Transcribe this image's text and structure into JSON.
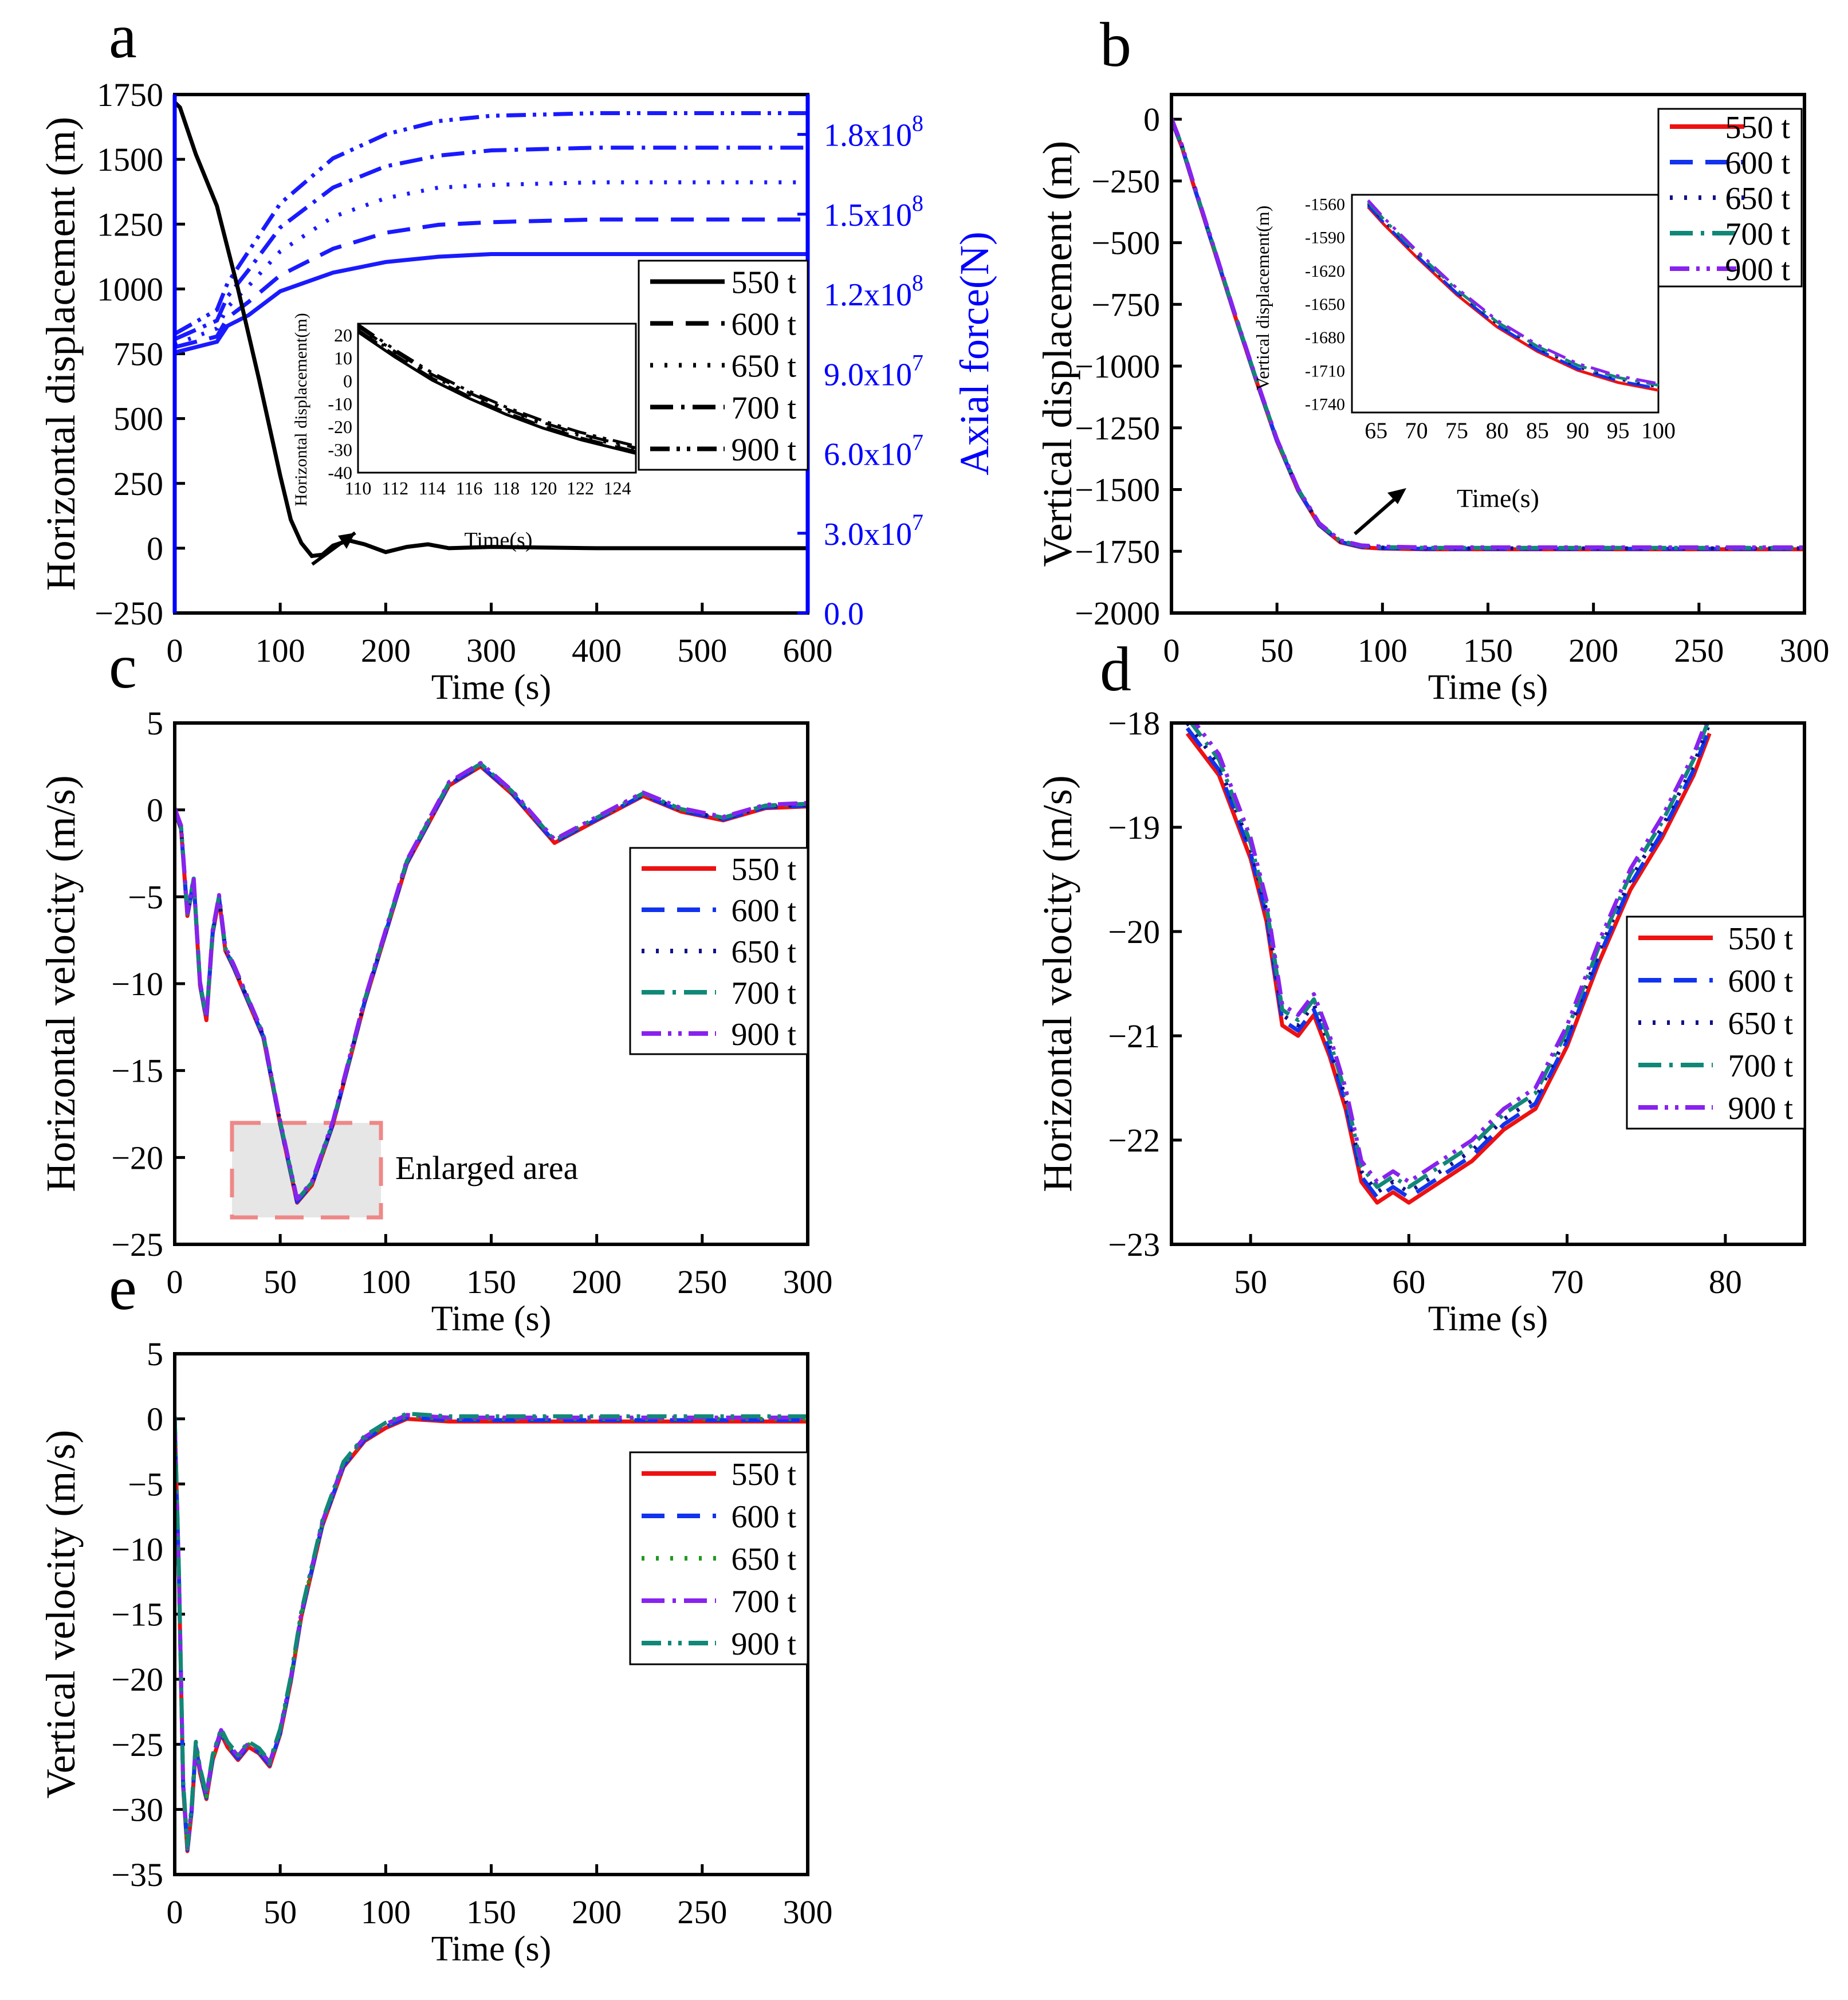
{
  "figure": {
    "panel_labels": [
      "a",
      "b",
      "c",
      "d",
      "e"
    ]
  },
  "colors": {
    "black": "#000000",
    "blue_axis": "#0000ff",
    "force": "#1a1aff",
    "red": "#ee1111",
    "blue": "#1133ee",
    "navy": "#111188",
    "teal": "#118877",
    "purple": "#8822ee",
    "green": "#229922"
  },
  "chart_data": [
    {
      "id": "a",
      "label": "a",
      "type": "line",
      "xlabel": "Time (s)",
      "ylabel": "Horizontal displacement (m)",
      "y2label": "Axial force(N)",
      "xlim": [
        0,
        600
      ],
      "ylim": [
        -250,
        1750
      ],
      "y2lim": [
        0,
        195000000
      ],
      "xticks": [
        "0",
        "100",
        "200",
        "300",
        "400",
        "500",
        "600"
      ],
      "yticks": [
        "−250",
        "0",
        "250",
        "500",
        "750",
        "1000",
        "1250",
        "1500",
        "1750"
      ],
      "y2ticks": [
        "0.0",
        "3.0x10",
        "6.0x10",
        "9.0x10",
        "1.2x10",
        "1.5x10",
        "1.8x10"
      ],
      "y2tick_exponents": [
        "",
        "7",
        "7",
        "7",
        "8",
        "8",
        "8"
      ],
      "legend": [
        "550 t",
        "600 t",
        "650 t",
        "700 t",
        "900 t"
      ],
      "displacement_series": {
        "name": "550 t",
        "x": [
          0,
          5,
          20,
          40,
          60,
          80,
          100,
          110,
          120,
          130,
          140,
          150,
          165,
          180,
          200,
          220,
          240,
          260,
          300,
          400,
          600
        ],
        "y": [
          1720,
          1700,
          1520,
          1320,
          1000,
          650,
          280,
          110,
          20,
          -30,
          -25,
          10,
          30,
          15,
          -15,
          5,
          15,
          0,
          5,
          0,
          0
        ]
      },
      "force_series": [
        {
          "name": "550 t",
          "x": [
            0,
            40,
            50,
            70,
            100,
            150,
            200,
            250,
            300,
            400,
            600
          ],
          "y": [
            98000000,
            102000000,
            108000000,
            112000000,
            121000000,
            128000000,
            132000000,
            134000000,
            135000000,
            135000000,
            135000000
          ]
        },
        {
          "name": "600 t",
          "x": [
            0,
            40,
            50,
            70,
            100,
            150,
            200,
            250,
            300,
            400,
            600
          ],
          "y": [
            100000000,
            104000000,
            111000000,
            117000000,
            127000000,
            137000000,
            143000000,
            146000000,
            147000000,
            148000000,
            148000000
          ]
        },
        {
          "name": "650 t",
          "x": [
            0,
            40,
            50,
            70,
            100,
            150,
            200,
            250,
            300,
            400,
            600
          ],
          "y": [
            101000000,
            107000000,
            115000000,
            123000000,
            136000000,
            149000000,
            156000000,
            160000000,
            161000000,
            162000000,
            162000000
          ]
        },
        {
          "name": "700 t",
          "x": [
            0,
            40,
            50,
            70,
            100,
            150,
            200,
            250,
            300,
            400,
            600
          ],
          "y": [
            103000000,
            110000000,
            119000000,
            129000000,
            145000000,
            160000000,
            168000000,
            172000000,
            174000000,
            175000000,
            175000000
          ]
        },
        {
          "name": "900 t",
          "x": [
            0,
            40,
            50,
            70,
            100,
            150,
            200,
            250,
            300,
            400,
            600
          ],
          "y": [
            105000000,
            114000000,
            124000000,
            136000000,
            154000000,
            171000000,
            180000000,
            185000000,
            187000000,
            188000000,
            188000000
          ]
        }
      ],
      "inset": {
        "xlabel": "Time(s)",
        "ylabel": "Horizontal displacement(m)",
        "xlim": [
          110,
          125
        ],
        "ylim": [
          -40,
          25
        ],
        "xticks": [
          "110",
          "112",
          "114",
          "116",
          "118",
          "120",
          "122",
          "124"
        ],
        "yticks": [
          "-40",
          "-30",
          "-20",
          "-10",
          "0",
          "10",
          "20"
        ],
        "x": [
          110,
          112,
          114,
          116,
          118,
          120,
          122,
          124,
          125
        ],
        "y": [
          23,
          12,
          2,
          -6,
          -13,
          -19,
          -24,
          -28,
          -30
        ]
      }
    },
    {
      "id": "b",
      "label": "b",
      "type": "line",
      "xlabel": "Time (s)",
      "ylabel": "Vertical displacement (m)",
      "xlim": [
        0,
        300
      ],
      "ylim": [
        -2000,
        100
      ],
      "xticks": [
        "0",
        "50",
        "100",
        "150",
        "200",
        "250",
        "300"
      ],
      "yticks": [
        "0",
        "−250",
        "−500",
        "−750",
        "−1000",
        "−1250",
        "−1500",
        "−1750",
        "−2000"
      ],
      "legend": [
        "550 t",
        "600 t",
        "650 t",
        "700 t",
        "900 t"
      ],
      "x": [
        0,
        5,
        10,
        20,
        30,
        40,
        50,
        60,
        70,
        80,
        90,
        100,
        120,
        150,
        200,
        300
      ],
      "y": [
        0,
        -110,
        -250,
        -520,
        -790,
        -1050,
        -1300,
        -1500,
        -1640,
        -1710,
        -1730,
        -1735,
        -1738,
        -1738,
        -1738,
        -1738
      ],
      "inset": {
        "xlabel": "Time(s)",
        "ylabel": "Vertical displacement(m)",
        "xlim": [
          62,
          100
        ],
        "ylim": [
          -1748,
          -1552
        ],
        "xticks": [
          "65",
          "70",
          "75",
          "80",
          "85",
          "90",
          "95",
          "100"
        ],
        "yticks": [
          "-1560",
          "-1590",
          "-1620",
          "-1650",
          "-1680",
          "-1710",
          "-1740"
        ],
        "x": [
          64,
          66,
          70,
          75,
          80,
          85,
          90,
          95,
          100
        ],
        "y": [
          -1560,
          -1576,
          -1605,
          -1639,
          -1668,
          -1690,
          -1707,
          -1718,
          -1725
        ]
      }
    },
    {
      "id": "c",
      "label": "c",
      "type": "line",
      "xlabel": "Time (s)",
      "ylabel": "Horizontal velocity (m/s)",
      "xlim": [
        0,
        300
      ],
      "ylim": [
        -25,
        5
      ],
      "xticks": [
        "0",
        "50",
        "100",
        "150",
        "200",
        "250",
        "300"
      ],
      "yticks": [
        "5",
        "0",
        "−5",
        "−10",
        "−15",
        "−20",
        "−25"
      ],
      "legend": [
        "550 t",
        "600 t",
        "650 t",
        "700 t",
        "900 t"
      ],
      "annotation": "Enlarged area",
      "x": [
        0,
        3,
        6,
        9,
        12,
        15,
        18,
        21,
        24,
        28,
        35,
        42,
        50,
        58,
        65,
        75,
        90,
        110,
        130,
        145,
        160,
        180,
        200,
        222,
        240,
        260,
        280,
        300
      ],
      "y": [
        0,
        -1,
        -6,
        -4,
        -10,
        -12,
        -7,
        -5,
        -8,
        -9,
        -11,
        -13,
        -18,
        -22.5,
        -21.5,
        -18,
        -11,
        -3,
        1.5,
        2.6,
        1,
        -1.8,
        -0.5,
        0.9,
        0,
        -0.5,
        0.2,
        0.3
      ]
    },
    {
      "id": "d",
      "label": "d",
      "type": "line",
      "xlabel": "Time (s)",
      "ylabel": "Horizontal velocity (m/s)",
      "xlim": [
        45,
        85
      ],
      "ylim": [
        -23,
        -18
      ],
      "xticks": [
        "50",
        "60",
        "70",
        "80"
      ],
      "yticks": [
        "−18",
        "−19",
        "−20",
        "−21",
        "−22",
        "−23"
      ],
      "legend": [
        "550 t",
        "600 t",
        "650 t",
        "700 t",
        "900 t"
      ],
      "x": [
        46,
        48,
        50,
        51,
        52,
        53,
        54,
        55,
        56,
        57,
        58,
        59,
        60,
        61,
        62,
        64,
        66,
        68,
        70,
        72,
        74,
        76,
        78,
        79
      ],
      "y": [
        -18,
        -18.4,
        -19.2,
        -19.8,
        -20.8,
        -20.9,
        -20.7,
        -21.1,
        -21.6,
        -22.3,
        -22.5,
        -22.4,
        -22.5,
        -22.4,
        -22.3,
        -22.1,
        -21.8,
        -21.6,
        -21,
        -20.2,
        -19.5,
        -19,
        -18.4,
        -18
      ]
    },
    {
      "id": "e",
      "label": "e",
      "type": "line",
      "xlabel": "Time (s)",
      "ylabel": "Vertical velocity (m/s)",
      "xlim": [
        0,
        300
      ],
      "ylim": [
        -35,
        5
      ],
      "xticks": [
        "0",
        "50",
        "100",
        "150",
        "200",
        "250",
        "300"
      ],
      "yticks": [
        "5",
        "0",
        "−5",
        "−10",
        "−15",
        "−20",
        "−25",
        "−30",
        "−35"
      ],
      "legend": [
        "550 t",
        "600 t",
        "650 t",
        "700 t",
        "900 t"
      ],
      "x": [
        0,
        2,
        4,
        6,
        8,
        10,
        12,
        15,
        18,
        22,
        25,
        30,
        35,
        40,
        45,
        50,
        55,
        60,
        70,
        80,
        90,
        100,
        110,
        130,
        150,
        200,
        250,
        300
      ],
      "y": [
        0,
        -12,
        -28,
        -33,
        -30,
        -25,
        -27,
        -29,
        -26,
        -24,
        -25,
        -26,
        -25,
        -25.5,
        -26.5,
        -24,
        -20,
        -15,
        -8,
        -3.5,
        -1.5,
        -0.5,
        0.2,
        0,
        0,
        0,
        0,
        0
      ]
    }
  ]
}
